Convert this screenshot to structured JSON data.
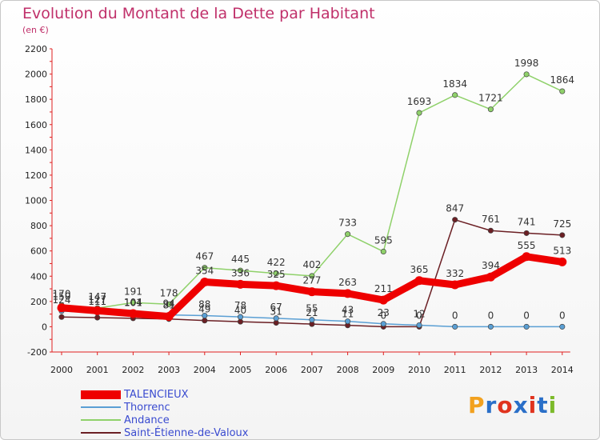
{
  "header": {
    "title": "Evolution du Montant de la Dette par Habitant",
    "subtitle": "(en €)"
  },
  "logo": {
    "text": "Proxiti",
    "colors": [
      "#f2a11f",
      "#2a6fc8",
      "#e0331e",
      "#2a6fc8",
      "#e0331e",
      "#2a6fc8",
      "#7cba2a"
    ]
  },
  "chart_data": {
    "type": "line",
    "title": "Evolution du Montant de la Dette par Habitant",
    "subtitle": "(en €)",
    "xlabel": "",
    "ylabel": "",
    "ylim": [
      -200,
      2200
    ],
    "yticks": [
      -200,
      0,
      200,
      400,
      600,
      800,
      1000,
      1200,
      1400,
      1600,
      1800,
      2000,
      2200
    ],
    "x": [
      2000,
      2001,
      2002,
      2003,
      2004,
      2005,
      2006,
      2007,
      2008,
      2009,
      2010,
      2011,
      2012,
      2013,
      2014
    ],
    "grid": false,
    "legend_position": "bottom-left",
    "series": [
      {
        "name": "TALENCIEUX",
        "color": "#ee0000",
        "values": [
          150,
          127,
          104,
          81,
          354,
          336,
          325,
          277,
          263,
          211,
          365,
          332,
          394,
          555,
          513
        ],
        "labels": [
          "150",
          "127",
          "104",
          "81",
          "354",
          "336",
          "325",
          "277",
          "263",
          "211",
          "365",
          "332",
          "394",
          "555",
          "513"
        ]
      },
      {
        "name": "Thorrenc",
        "color": "#5a9fd4",
        "values": [
          124,
          111,
          101,
          94,
          88,
          78,
          67,
          55,
          43,
          23,
          12,
          0,
          0,
          0,
          0
        ],
        "labels": [
          "124",
          "111",
          "101",
          "94",
          "88",
          "78",
          "67",
          "55",
          "43",
          "23",
          "12",
          "0",
          "0",
          "0",
          "0"
        ]
      },
      {
        "name": "Andance",
        "color": "#8fd16a",
        "values": [
          170,
          147,
          191,
          178,
          467,
          445,
          422,
          402,
          733,
          595,
          1693,
          1834,
          1721,
          1998,
          1864
        ],
        "labels": [
          "170",
          "147",
          "191",
          "178",
          "467",
          "445",
          "422",
          "402",
          "733",
          "595",
          "1693",
          "1834",
          "1721",
          "1998",
          "1864"
        ]
      },
      {
        "name": "Saint-Étienne-de-Valoux",
        "color": "#6b1f24",
        "values": [
          77,
          72,
          67,
          61,
          49,
          40,
          31,
          21,
          11,
          0,
          0,
          847,
          761,
          741,
          725
        ],
        "labels": [
          "",
          "",
          "",
          "",
          "49",
          "40",
          "31",
          "21",
          "11",
          "0",
          "0",
          "847",
          "761",
          "741",
          "725"
        ]
      }
    ]
  }
}
